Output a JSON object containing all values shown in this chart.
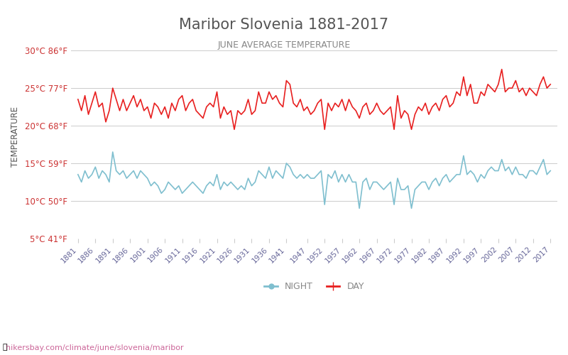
{
  "title": "Maribor Slovenia 1881-2017",
  "subtitle": "JUNE AVERAGE TEMPERATURE",
  "ylabel": "TEMPERATURE",
  "watermark": "hikersbay.com/climate/june/slovenia/maribor",
  "years": [
    1881,
    1882,
    1883,
    1884,
    1885,
    1886,
    1887,
    1888,
    1889,
    1890,
    1891,
    1892,
    1893,
    1894,
    1895,
    1896,
    1897,
    1898,
    1899,
    1900,
    1901,
    1902,
    1903,
    1904,
    1905,
    1906,
    1907,
    1908,
    1909,
    1910,
    1911,
    1912,
    1913,
    1914,
    1915,
    1916,
    1917,
    1918,
    1919,
    1920,
    1921,
    1922,
    1923,
    1924,
    1925,
    1926,
    1927,
    1928,
    1929,
    1930,
    1931,
    1932,
    1933,
    1934,
    1935,
    1936,
    1937,
    1938,
    1939,
    1940,
    1941,
    1942,
    1943,
    1944,
    1945,
    1946,
    1947,
    1948,
    1949,
    1950,
    1951,
    1952,
    1953,
    1954,
    1955,
    1956,
    1957,
    1958,
    1959,
    1960,
    1961,
    1962,
    1963,
    1964,
    1965,
    1966,
    1967,
    1968,
    1969,
    1970,
    1971,
    1972,
    1973,
    1974,
    1975,
    1976,
    1977,
    1978,
    1979,
    1980,
    1981,
    1982,
    1983,
    1984,
    1985,
    1986,
    1987,
    1988,
    1989,
    1990,
    1991,
    1992,
    1993,
    1994,
    1995,
    1996,
    1997,
    1998,
    1999,
    2000,
    2001,
    2002,
    2003,
    2004,
    2005,
    2006,
    2007,
    2008,
    2009,
    2010,
    2011,
    2012,
    2013,
    2014,
    2015,
    2016,
    2017
  ],
  "day_temps": [
    23.5,
    22.0,
    24.0,
    21.5,
    23.0,
    24.5,
    22.5,
    23.0,
    20.5,
    22.0,
    25.0,
    23.5,
    22.0,
    23.5,
    22.0,
    23.0,
    24.0,
    22.5,
    23.5,
    22.0,
    22.5,
    21.0,
    23.0,
    22.5,
    21.5,
    22.5,
    21.0,
    23.0,
    22.0,
    23.5,
    24.0,
    22.0,
    23.0,
    23.5,
    22.0,
    21.5,
    21.0,
    22.5,
    23.0,
    22.5,
    24.5,
    21.0,
    22.5,
    21.5,
    22.0,
    19.5,
    22.0,
    21.5,
    22.0,
    23.5,
    21.5,
    22.0,
    24.5,
    23.0,
    23.0,
    24.5,
    23.5,
    24.0,
    23.0,
    22.5,
    26.0,
    25.5,
    23.0,
    22.5,
    23.5,
    22.0,
    22.5,
    21.5,
    22.0,
    23.0,
    23.5,
    19.5,
    23.0,
    22.0,
    23.0,
    22.5,
    23.5,
    22.0,
    23.5,
    22.5,
    22.0,
    21.0,
    22.5,
    23.0,
    21.5,
    22.0,
    23.0,
    22.0,
    21.5,
    22.0,
    22.5,
    19.5,
    24.0,
    21.0,
    22.0,
    21.5,
    19.5,
    21.5,
    22.5,
    22.0,
    23.0,
    21.5,
    22.5,
    23.0,
    22.0,
    23.5,
    24.0,
    22.5,
    23.0,
    24.5,
    24.0,
    26.5,
    24.0,
    25.5,
    23.0,
    23.0,
    24.5,
    24.0,
    25.5,
    25.0,
    24.5,
    25.5,
    27.5,
    24.5,
    25.0,
    25.0,
    26.0,
    24.5,
    25.0,
    24.0,
    25.0,
    24.5,
    24.0,
    25.5,
    26.5,
    25.0,
    25.5
  ],
  "night_temps": [
    13.5,
    12.5,
    14.0,
    13.0,
    13.5,
    14.5,
    13.0,
    14.0,
    13.5,
    12.5,
    16.5,
    14.0,
    13.5,
    14.0,
    13.0,
    13.5,
    14.0,
    13.0,
    14.0,
    13.5,
    13.0,
    12.0,
    12.5,
    12.0,
    11.0,
    11.5,
    12.5,
    12.0,
    11.5,
    12.0,
    11.0,
    11.5,
    12.0,
    12.5,
    12.0,
    11.5,
    11.0,
    12.0,
    12.5,
    12.0,
    13.5,
    11.5,
    12.5,
    12.0,
    12.5,
    12.0,
    11.5,
    12.0,
    11.5,
    13.0,
    12.0,
    12.5,
    14.0,
    13.5,
    13.0,
    14.5,
    13.0,
    14.0,
    13.5,
    13.0,
    15.0,
    14.5,
    13.5,
    13.0,
    13.5,
    13.0,
    13.5,
    13.0,
    13.0,
    13.5,
    14.0,
    9.5,
    13.5,
    13.0,
    14.0,
    12.5,
    13.5,
    12.5,
    13.5,
    12.5,
    12.5,
    9.0,
    12.5,
    13.0,
    11.5,
    12.5,
    12.5,
    12.0,
    11.5,
    12.0,
    12.5,
    9.5,
    13.0,
    11.5,
    11.5,
    12.0,
    9.0,
    11.5,
    12.0,
    12.5,
    12.5,
    11.5,
    12.5,
    13.0,
    12.0,
    13.0,
    13.5,
    12.5,
    13.0,
    13.5,
    13.5,
    16.0,
    13.5,
    14.0,
    13.5,
    12.5,
    13.5,
    13.0,
    14.0,
    14.5,
    14.0,
    14.0,
    15.5,
    14.0,
    14.5,
    13.5,
    14.5,
    13.5,
    13.5,
    13.0,
    14.0,
    14.0,
    13.5,
    14.5,
    15.5,
    13.5,
    14.0
  ],
  "day_color": "#e82020",
  "night_color": "#7fbfcf",
  "background_color": "#ffffff",
  "grid_color": "#cccccc",
  "title_color": "#555555",
  "subtitle_color": "#888888",
  "ylabel_color": "#555555",
  "tick_color": "#cc3333",
  "xtick_color": "#666699",
  "watermark_color": "#cc6699",
  "ylim": [
    5,
    32
  ],
  "yticks_c": [
    5,
    10,
    15,
    20,
    25,
    30
  ],
  "ytick_labels": [
    "5°C 41°F",
    "10°C 50°F",
    "15°C 59°F",
    "20°C 68°F",
    "25°C 77°F",
    "30°C 86°F"
  ],
  "xtick_years": [
    1881,
    1886,
    1891,
    1896,
    1901,
    1906,
    1911,
    1916,
    1921,
    1926,
    1931,
    1936,
    1941,
    1947,
    1952,
    1957,
    1962,
    1967,
    1972,
    1977,
    1982,
    1987,
    1992,
    1997,
    2002,
    2007,
    2012,
    2017
  ],
  "legend_night": "NIGHT",
  "legend_day": "DAY",
  "linewidth": 1.2
}
